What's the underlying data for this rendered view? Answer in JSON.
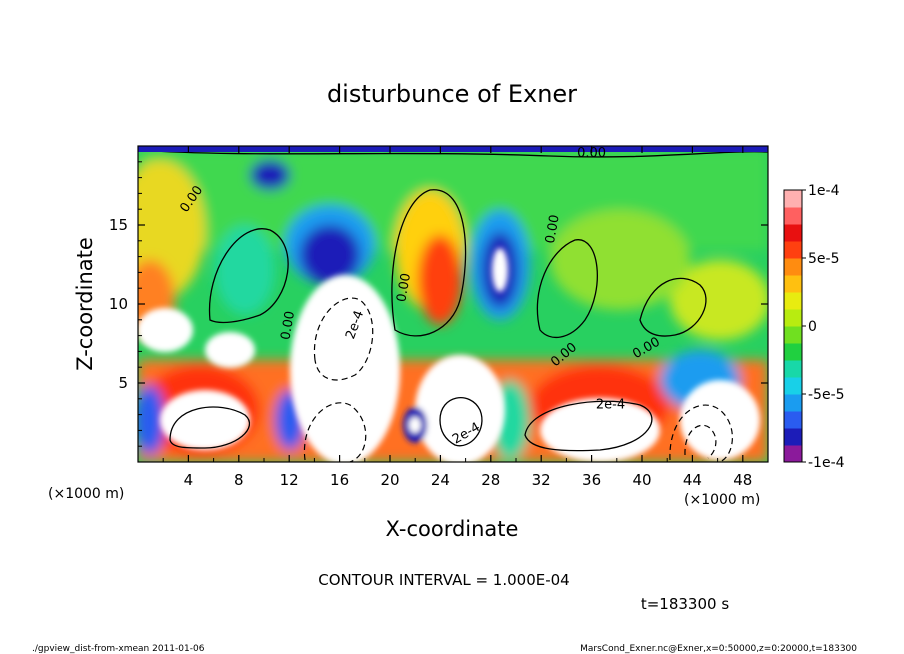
{
  "chart_data": {
    "type": "contour",
    "title": "disturbunce of Exner",
    "xlabel": "X-coordinate",
    "ylabel": "Z-coordinate",
    "x_unit": "(×1000 m)",
    "y_unit": "(×1000 m)",
    "xlim": [
      0,
      50
    ],
    "ylim": [
      0,
      20
    ],
    "x_ticks": [
      4,
      8,
      12,
      16,
      20,
      24,
      28,
      32,
      36,
      40,
      44,
      48
    ],
    "y_ticks": [
      5,
      10,
      15
    ],
    "contour_interval": "CONTOUR INTERVAL = 1.000E-04",
    "time": "t=183300 s",
    "colorbar": {
      "min": -0.0001,
      "max": 0.0001,
      "tick_values": [
        0.0001,
        5e-05,
        0,
        -5e-05,
        -0.0001
      ],
      "tick_labels": [
        "1e-4",
        "5e-5",
        "0",
        "-5e-5",
        "-1e-4"
      ],
      "colors": [
        "#8b1a9b",
        "#1c1cb8",
        "#2a5cf0",
        "#1a9cf0",
        "#18d0e8",
        "#18d8a8",
        "#20d040",
        "#70e020",
        "#b8ec10",
        "#e8ec10",
        "#ffc010",
        "#ff8c10",
        "#ff4010",
        "#e81010",
        "#ff6060",
        "#ffb0b0"
      ]
    },
    "contour_labels": [
      {
        "text": "0.00",
        "x": 4.5,
        "y": 16.5,
        "angle": -55
      },
      {
        "text": "0.00",
        "x": 12.2,
        "y": 8.6,
        "angle": -80
      },
      {
        "text": "0.00",
        "x": 21.4,
        "y": 11.0,
        "angle": -80
      },
      {
        "text": "0.00",
        "x": 33.2,
        "y": 14.7,
        "angle": -80
      },
      {
        "text": "0.00",
        "x": 34.0,
        "y": 6.6,
        "angle": -40
      },
      {
        "text": "0.00",
        "x": 40.5,
        "y": 7.0,
        "angle": -30
      },
      {
        "text": "0.00",
        "x": 36.0,
        "y": 19.3,
        "angle": 0
      },
      {
        "text": "2e-4",
        "x": 17.5,
        "y": 8.6,
        "angle": -70
      },
      {
        "text": "2e-4",
        "x": 26.2,
        "y": 1.6,
        "angle": -30
      },
      {
        "text": "2e-4",
        "x": 37.5,
        "y": 3.4,
        "angle": 0
      }
    ]
  },
  "footer": {
    "left": "./gpview_dist-from-xmean  2011-01-06",
    "right": "MarsCond_Exner.nc@Exner,x=0:50000,z=0:20000,t=183300"
  }
}
